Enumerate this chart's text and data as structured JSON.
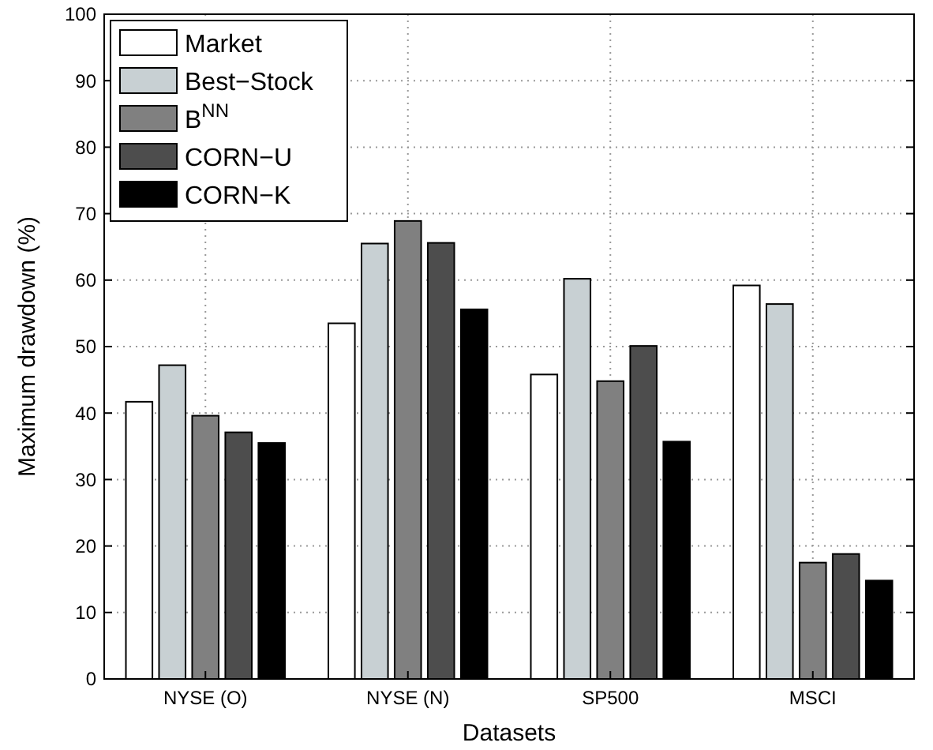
{
  "chart_data": {
    "type": "bar",
    "xlabel": "Datasets",
    "ylabel": "Maximum drawdown (%)",
    "categories": [
      "NYSE (O)",
      "NYSE (N)",
      "SP500",
      "MSCI"
    ],
    "series": [
      {
        "name": "Market",
        "color": "#ffffff",
        "values": [
          41.7,
          53.5,
          45.8,
          59.2
        ]
      },
      {
        "name": "Best−Stock",
        "color": "#c8d0d3",
        "values": [
          47.2,
          65.5,
          60.2,
          56.4
        ]
      },
      {
        "name": "B$^{NN}$",
        "color": "#808080",
        "values": [
          39.6,
          68.9,
          44.8,
          17.5
        ]
      },
      {
        "name": "CORN−U",
        "color": "#4d4d4d",
        "values": [
          37.1,
          65.6,
          50.1,
          18.8
        ]
      },
      {
        "name": "CORN−K",
        "color": "#000000",
        "values": [
          35.5,
          55.6,
          35.7,
          14.8
        ]
      }
    ],
    "ylim": [
      0,
      100
    ],
    "yticks": [
      0,
      10,
      20,
      30,
      40,
      50,
      60,
      70,
      80,
      90,
      100
    ],
    "grid": true,
    "legend": "top left"
  }
}
